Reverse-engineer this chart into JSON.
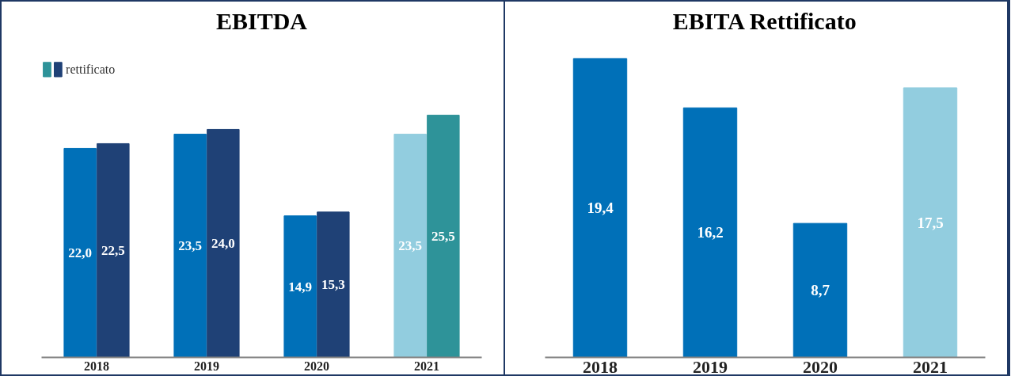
{
  "chart_data": [
    {
      "type": "bar",
      "title": "EBITDA",
      "categories": [
        "2018",
        "2019",
        "2020",
        "2021"
      ],
      "legend": "top left",
      "grid": false,
      "tick_labels": "x",
      "series": [
        {
          "colors": [
            "#0070b8",
            "#0070b8",
            "#0070b8",
            "#92cddf"
          ],
          "values": [
            22.0,
            23.5,
            14.9,
            23.5
          ],
          "value_labels": [
            "22,0",
            "23,5",
            "14,9",
            "23,5"
          ]
        },
        {
          "name": "rettificato",
          "colors": [
            "#1f4176",
            "#1f4176",
            "#1f4176",
            "#2e9399"
          ],
          "values": [
            22.5,
            24.0,
            15.3,
            25.5
          ],
          "value_labels": [
            "22,5",
            "24,0",
            "15,3",
            "25,5"
          ]
        }
      ]
    },
    {
      "type": "bar",
      "title": "EBITA Rettificato",
      "categories": [
        "2018",
        "2019",
        "2020",
        "2021"
      ],
      "grid": false,
      "tick_labels": "x",
      "colors": [
        "#0070b8",
        "#0070b8",
        "#0070b8",
        "#92cddf"
      ],
      "values": [
        19.4,
        16.2,
        8.7,
        17.5
      ],
      "value_labels": [
        "19,4",
        "16,2",
        "8,7",
        "17,5"
      ]
    }
  ]
}
